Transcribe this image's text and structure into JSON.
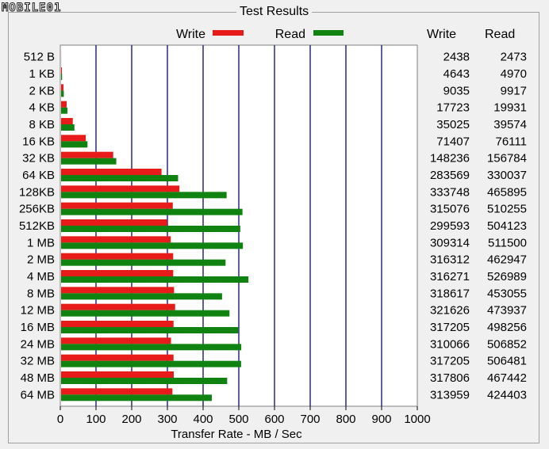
{
  "window": {
    "group_title": "Test Results",
    "logo_text": "MOBILE01"
  },
  "colors": {
    "write": "#e81b1b",
    "read": "#108210",
    "grid": "#1a1a7a",
    "plot_bg": "#ffffff",
    "border": "#808080"
  },
  "table": {
    "write_header": "Write",
    "read_header": "Read"
  },
  "chart_data": {
    "type": "bar",
    "orientation": "horizontal",
    "xlabel": "Transfer Rate - MB / Sec",
    "xlim": [
      0,
      1000
    ],
    "x_ticks": [
      0,
      100,
      200,
      300,
      400,
      500,
      600,
      700,
      800,
      900,
      1000
    ],
    "grid": true,
    "legend_placement": "top-center",
    "categories": [
      "512 B",
      "1 KB",
      "2 KB",
      "4 KB",
      "8 KB",
      "16 KB",
      "32 KB",
      "64 KB",
      "128KB",
      "256KB",
      "512KB",
      "1 MB",
      "2 MB",
      "4 MB",
      "8 MB",
      "12 MB",
      "16 MB",
      "24 MB",
      "32 MB",
      "48 MB",
      "64 MB"
    ],
    "series": [
      {
        "name": "Write",
        "values_mb_per_sec": [
          2.4,
          4.6,
          9.0,
          17.7,
          35.0,
          71.4,
          148.2,
          283.6,
          333.7,
          315.1,
          299.6,
          309.3,
          316.3,
          316.3,
          318.6,
          321.6,
          317.2,
          310.1,
          317.2,
          317.8,
          314.0
        ],
        "table_values": [
          2438,
          4643,
          9035,
          17723,
          35025,
          71407,
          148236,
          283569,
          333748,
          315076,
          299593,
          309314,
          316312,
          316271,
          318617,
          321626,
          317205,
          310066,
          317205,
          317806,
          313959
        ]
      },
      {
        "name": "Read",
        "values_mb_per_sec": [
          2.5,
          5.0,
          9.9,
          19.9,
          39.6,
          76.1,
          156.8,
          330.0,
          465.9,
          510.3,
          504.1,
          511.5,
          462.9,
          527.0,
          453.1,
          473.9,
          498.3,
          506.9,
          506.5,
          467.4,
          424.4
        ],
        "table_values": [
          2473,
          4970,
          9917,
          19931,
          39574,
          76111,
          156784,
          330037,
          465895,
          510255,
          504123,
          511500,
          462947,
          526989,
          453055,
          473937,
          498256,
          506852,
          506481,
          467442,
          424403
        ]
      }
    ]
  }
}
